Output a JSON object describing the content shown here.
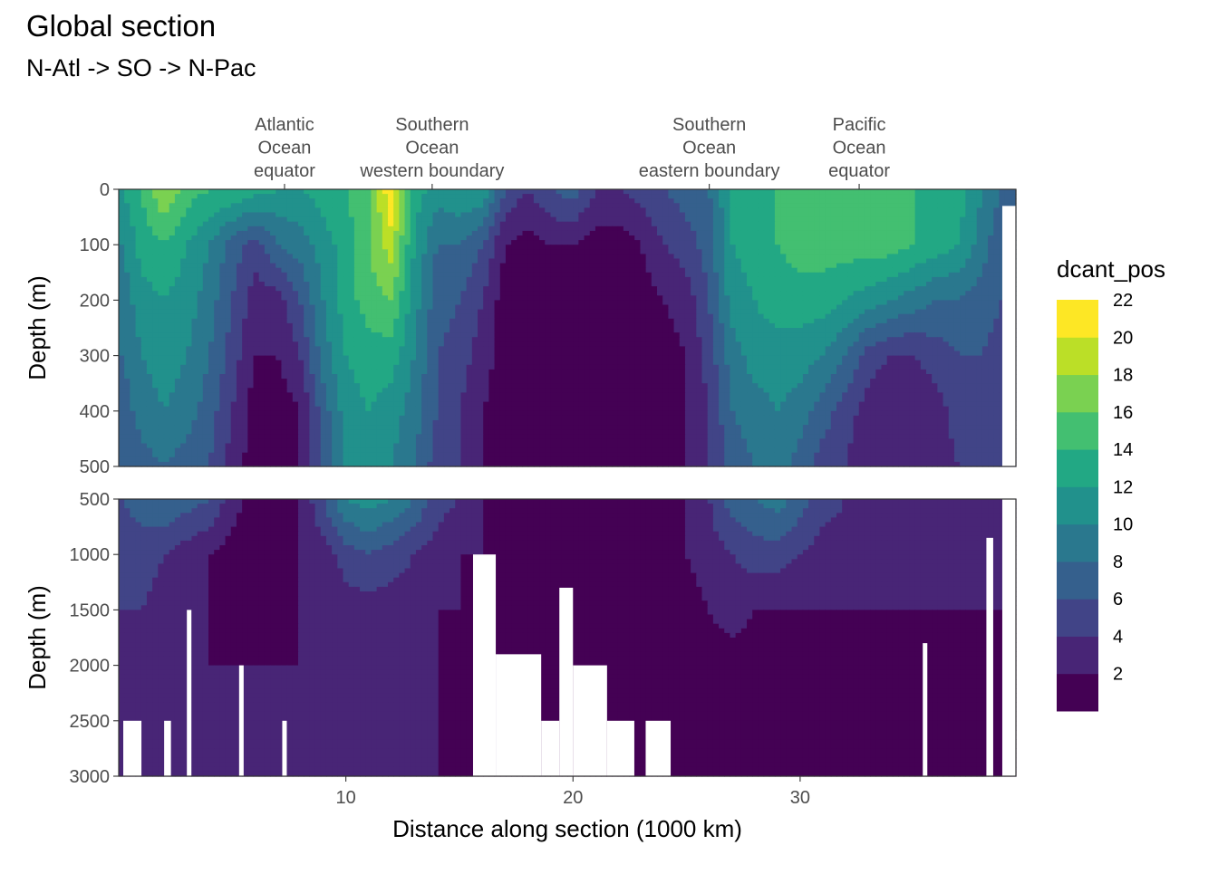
{
  "chart_data": {
    "type": "heatmap",
    "title": "Global section",
    "subtitle": "N-Atl -> SO -> N-Pac",
    "xlabel": "Distance along section (1000 km)",
    "ylabel": "Depth (m)",
    "xlim": [
      0,
      39.5
    ],
    "x_ticks": [
      10,
      20,
      30
    ],
    "top_axis_labels": [
      {
        "x": 7.3,
        "lines": [
          "Atlantic",
          "Ocean",
          "equator"
        ]
      },
      {
        "x": 13.8,
        "lines": [
          "Southern",
          "Ocean",
          "western boundary"
        ]
      },
      {
        "x": 26.0,
        "lines": [
          "Southern",
          "Ocean",
          "eastern boundary"
        ]
      },
      {
        "x": 32.6,
        "lines": [
          "Pacific",
          "Ocean",
          "equator"
        ]
      }
    ],
    "panels": [
      {
        "name": "upper",
        "ylim": [
          0,
          500
        ],
        "y_ticks": [
          0,
          100,
          200,
          300,
          400,
          500
        ]
      },
      {
        "name": "lower",
        "ylim": [
          500,
          3000
        ],
        "y_ticks": [
          500,
          1000,
          1500,
          2000,
          2500,
          3000
        ]
      }
    ],
    "legend": {
      "title": "dcant_pos",
      "position": "right",
      "labels": [
        2,
        4,
        6,
        8,
        10,
        12,
        14,
        16,
        18,
        20,
        22
      ],
      "colors": [
        "#440154",
        "#482576",
        "#414487",
        "#35608D",
        "#2A788E",
        "#21918C",
        "#22A884",
        "#43BF71",
        "#7AD151",
        "#BBDF27",
        "#FDE725"
      ]
    },
    "contours": {
      "x": [
        0.2,
        1,
        2,
        3,
        4,
        5,
        6,
        7,
        8,
        9,
        10,
        11,
        12,
        13,
        14,
        15,
        16,
        17,
        18,
        19,
        20,
        21,
        22,
        23,
        24,
        25,
        26,
        27,
        28,
        29,
        30,
        31,
        32,
        33,
        34,
        35,
        36,
        37,
        38,
        38.9
      ],
      "depth": [
        0,
        100,
        200,
        300,
        400,
        500,
        1000,
        1500,
        2000,
        2500,
        3000
      ],
      "dcant_pos": [
        [
          12,
          14,
          18,
          15,
          14,
          14,
          13,
          12,
          12,
          13,
          14,
          15,
          22,
          13,
          11,
          12,
          12,
          6,
          4,
          6,
          7,
          4,
          4,
          5,
          6,
          7,
          8,
          12,
          14,
          14,
          15,
          14,
          14,
          14,
          14,
          14,
          14,
          13,
          10,
          8
        ],
        [
          10,
          13,
          14,
          12,
          10,
          7,
          5,
          8,
          9,
          11,
          13,
          16,
          19,
          12,
          8,
          8,
          6,
          2,
          1,
          2,
          2,
          1,
          1,
          2,
          4,
          5,
          7,
          12,
          13,
          14,
          15,
          15,
          15,
          15,
          15,
          14,
          13,
          12,
          9,
          6
        ],
        [
          9,
          11,
          12,
          11,
          9,
          6,
          3,
          3,
          6,
          10,
          13,
          15,
          16,
          11,
          7,
          6,
          4,
          1,
          1,
          1,
          1,
          1,
          1,
          1,
          2,
          3,
          6,
          11,
          12,
          13,
          13,
          13,
          12,
          11,
          10,
          9,
          8,
          8,
          7,
          6
        ],
        [
          8,
          10,
          11,
          10,
          8,
          5,
          2,
          2,
          4,
          9,
          12,
          13,
          13,
          10,
          6,
          5,
          3,
          1,
          1,
          1,
          1,
          1,
          1,
          1,
          1,
          2,
          5,
          9,
          11,
          11,
          11,
          10,
          8,
          5,
          4,
          4,
          5,
          6,
          6,
          5
        ],
        [
          7,
          9,
          10,
          9,
          7,
          4,
          1,
          1,
          2,
          7,
          11,
          12,
          11,
          9,
          6,
          4,
          2,
          1,
          1,
          1,
          1,
          1,
          1,
          1,
          1,
          2,
          4,
          8,
          9,
          10,
          9,
          7,
          5,
          3,
          2,
          2,
          3,
          5,
          5,
          4
        ],
        [
          6,
          7,
          8,
          7,
          6,
          3,
          1,
          1,
          2,
          6,
          10,
          11,
          10,
          8,
          5,
          4,
          2,
          1,
          1,
          1,
          1,
          1,
          1,
          1,
          1,
          2,
          4,
          7,
          8,
          9,
          7,
          5,
          4,
          2,
          2,
          2,
          3,
          4,
          4,
          4
        ],
        [
          5,
          5,
          4,
          3,
          2,
          1,
          1,
          1,
          2,
          3,
          5,
          6,
          5,
          4,
          3,
          2,
          2,
          1,
          1,
          1,
          1,
          1,
          1,
          1,
          1,
          2,
          3,
          4,
          5,
          5,
          4,
          3,
          3,
          3,
          3,
          3,
          3,
          3,
          3,
          3
        ],
        [
          4,
          4,
          3,
          3,
          2,
          1,
          1,
          1,
          2,
          2,
          3,
          3,
          3,
          3,
          2,
          2,
          1,
          1,
          1,
          1,
          1,
          1,
          1,
          1,
          1,
          1,
          2,
          3,
          2,
          2,
          2,
          2,
          2,
          2,
          2,
          2,
          2,
          2,
          2,
          2
        ],
        [
          3,
          3,
          3,
          3,
          2,
          2,
          2,
          2,
          2,
          2,
          2,
          2,
          2,
          2,
          2,
          1,
          1,
          1,
          1,
          1,
          1,
          1,
          1,
          1,
          1,
          1,
          1,
          1,
          1,
          1,
          1,
          1,
          1,
          1,
          1,
          1,
          1,
          1,
          1,
          1
        ],
        [
          3,
          3,
          3,
          3,
          3,
          2,
          2,
          2,
          2,
          2,
          2,
          2,
          2,
          2,
          2,
          1,
          1,
          1,
          1,
          1,
          1,
          1,
          1,
          1,
          1,
          1,
          1,
          1,
          1,
          1,
          1,
          1,
          1,
          1,
          1,
          1,
          1,
          1,
          1,
          1
        ],
        [
          3,
          3,
          3,
          3,
          3,
          3,
          3,
          3,
          3,
          3,
          3,
          2,
          2,
          2,
          2,
          1,
          1,
          1,
          1,
          1,
          1,
          1,
          1,
          1,
          1,
          1,
          1,
          1,
          1,
          1,
          1,
          1,
          1,
          1,
          1,
          1,
          1,
          1,
          1,
          1
        ]
      ]
    },
    "seafloor_gaps": [
      {
        "x": [
          38.9,
          39.5
        ],
        "from_depth": 30
      },
      {
        "x": [
          0.2,
          1.0
        ],
        "from_depth": 2500
      },
      {
        "x": [
          2.0,
          2.3
        ],
        "from_depth": 2500
      },
      {
        "x": [
          3.0,
          3.2
        ],
        "from_depth": 1500
      },
      {
        "x": [
          5.3,
          5.5
        ],
        "from_depth": 2000
      },
      {
        "x": [
          7.2,
          7.4
        ],
        "from_depth": 2500
      },
      {
        "x": [
          15.6,
          16.6
        ],
        "from_depth": 1000
      },
      {
        "x": [
          16.6,
          18.6
        ],
        "from_depth": 1900
      },
      {
        "x": [
          18.6,
          19.4
        ],
        "from_depth": 2500
      },
      {
        "x": [
          19.4,
          20.0
        ],
        "from_depth": 1300
      },
      {
        "x": [
          20.0,
          21.5
        ],
        "from_depth": 2000
      },
      {
        "x": [
          21.5,
          22.7
        ],
        "from_depth": 2500
      },
      {
        "x": [
          23.2,
          24.3
        ],
        "from_depth": 2500
      },
      {
        "x": [
          35.4,
          35.6
        ],
        "from_depth": 1800
      },
      {
        "x": [
          38.2,
          38.5
        ],
        "from_depth": 850
      }
    ]
  }
}
